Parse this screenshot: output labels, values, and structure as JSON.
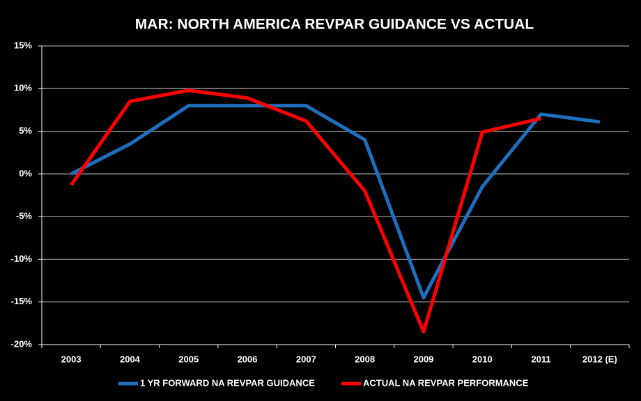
{
  "chart_data": {
    "type": "line",
    "title": "MAR:  NORTH AMERICA REVPAR GUIDANCE VS ACTUAL",
    "categories": [
      "2003",
      "2004",
      "2005",
      "2006",
      "2007",
      "2008",
      "2009",
      "2010",
      "2011",
      "2012 (E)"
    ],
    "series": [
      {
        "name": "1 YR FORWARD NA REVPAR GUIDANCE",
        "color": "#1f6fc0",
        "values": [
          0,
          3.5,
          8,
          8,
          8,
          4,
          -14.5,
          -1.5,
          7,
          6.1
        ]
      },
      {
        "name": "ACTUAL NA REVPAR PERFORMANCE",
        "color": "#ff0000",
        "values": [
          -1.3,
          8.5,
          9.8,
          8.9,
          6.2,
          -2,
          -18.5,
          4.9,
          6.5,
          null
        ]
      }
    ],
    "ylim": [
      -20,
      15
    ],
    "yticks": [
      {
        "value": -20,
        "label": "-20%"
      },
      {
        "value": -15,
        "label": "-15%"
      },
      {
        "value": -10,
        "label": "-10%"
      },
      {
        "value": -5,
        "label": "-5%"
      },
      {
        "value": 0,
        "label": "0%"
      },
      {
        "value": 5,
        "label": "5%"
      },
      {
        "value": 10,
        "label": "10%"
      },
      {
        "value": 15,
        "label": "15%"
      }
    ],
    "grid": true,
    "legend": "bottom"
  }
}
